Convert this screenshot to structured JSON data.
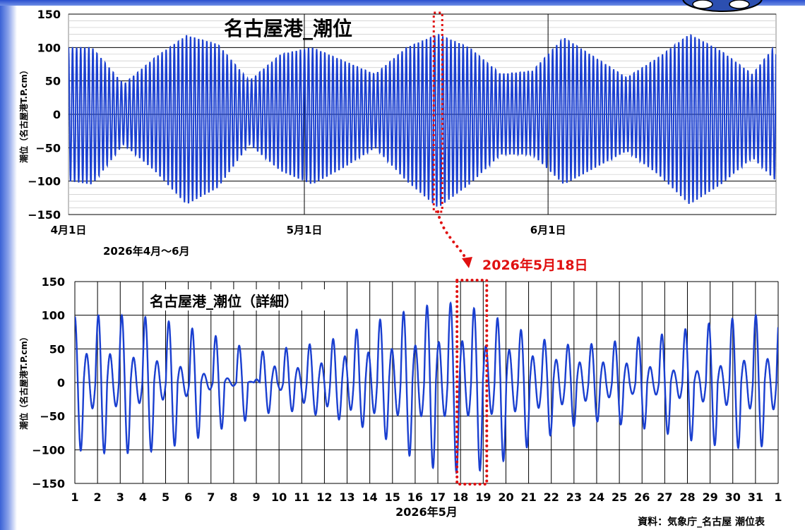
{
  "chart_data": [
    {
      "type": "line",
      "title": "名古屋港_潮位",
      "ylabel": "潮位（名古屋港T.P.cm）",
      "ylim": [
        -150,
        150
      ],
      "yticks": [
        "150",
        "100",
        "50",
        "0",
        "−50",
        "−100",
        "−150"
      ],
      "xlim": [
        "2026-04-01",
        "2026-06-30"
      ],
      "xticks": [
        {
          "date": "2026-04-01",
          "label": "4月1日"
        },
        {
          "date": "2026-05-01",
          "label": "5月1日"
        },
        {
          "date": "2026-06-01",
          "label": "6月1日"
        }
      ],
      "period_label": "2026年4月～6月",
      "highlight": {
        "date": "2026-05-18"
      },
      "series": [
        {
          "color": "#1a3fd0",
          "daily_range": {
            "dates": [
              "2026-04-01",
              "2026-04-04",
              "2026-04-08",
              "2026-04-12",
              "2026-04-16",
              "2026-04-20",
              "2026-04-24",
              "2026-04-28",
              "2026-05-02",
              "2026-05-06",
              "2026-05-10",
              "2026-05-14",
              "2026-05-18",
              "2026-05-22",
              "2026-05-26",
              "2026-05-30",
              "2026-06-03",
              "2026-06-07",
              "2026-06-11",
              "2026-06-15",
              "2026-06-19",
              "2026-06-23",
              "2026-06-27",
              "2026-06-30"
            ],
            "high": [
              100,
              100,
              45,
              85,
              118,
              105,
              50,
              90,
              100,
              80,
              60,
              100,
              120,
              100,
              60,
              65,
              115,
              85,
              55,
              85,
              120,
              95,
              60,
              105
            ],
            "low": [
              -100,
              -105,
              -45,
              -85,
              -135,
              -110,
              -45,
              -85,
              -105,
              -80,
              -50,
              -100,
              -140,
              -105,
              -60,
              -60,
              -105,
              -80,
              -55,
              -90,
              -135,
              -105,
              -65,
              -100
            ]
          }
        }
      ]
    },
    {
      "type": "line",
      "title": "名古屋港_潮位（詳細）",
      "ylabel": "潮位（名古屋港T.P.cm）",
      "ylim": [
        -150,
        150
      ],
      "yticks": [
        "150",
        "100",
        "50",
        "0",
        "−50",
        "−100",
        "−150"
      ],
      "xlim": [
        1,
        32
      ],
      "xticks": [
        "1",
        "2",
        "3",
        "4",
        "5",
        "6",
        "7",
        "8",
        "9",
        "10",
        "11",
        "12",
        "13",
        "14",
        "15",
        "16",
        "17",
        "18",
        "19",
        "20",
        "21",
        "22",
        "23",
        "24",
        "25",
        "26",
        "27",
        "28",
        "29",
        "30",
        "31",
        "1"
      ],
      "xlabel": "2026年5月",
      "highlight": {
        "day_start": 18,
        "day_end": 19,
        "label": "2026年5月18日"
      },
      "series": [
        {
          "color": "#1a3fd0",
          "day": [
            1,
            2,
            3,
            4,
            5,
            6,
            7,
            8,
            9,
            10,
            11,
            12,
            13,
            14,
            15,
            16,
            17,
            18,
            19,
            20,
            21,
            22,
            23,
            24,
            25,
            26,
            27,
            28,
            29,
            30,
            31,
            32
          ],
          "high1": [
            98,
            100,
            100,
            98,
            92,
            82,
            72,
            58,
            45,
            50,
            55,
            60,
            72,
            88,
            100,
            110,
            118,
            118,
            105,
            90,
            72,
            60,
            55,
            58,
            62,
            68,
            72,
            80,
            88,
            95,
            100,
            100
          ],
          "low1": [
            -100,
            -105,
            -105,
            -105,
            -98,
            -88,
            -75,
            -62,
            -52,
            -40,
            -45,
            -50,
            -58,
            -70,
            -90,
            -115,
            -130,
            -135,
            -130,
            -115,
            -95,
            -78,
            -65,
            -58,
            -62,
            -68,
            -75,
            -85,
            -92,
            -98,
            -95,
            -95
          ],
          "high2": [
            40,
            45,
            40,
            35,
            30,
            20,
            10,
            5,
            0,
            30,
            20,
            30,
            40,
            45,
            50,
            55,
            60,
            62,
            55,
            50,
            40,
            35,
            30,
            30,
            30,
            25,
            20,
            15,
            20,
            30,
            35,
            35
          ],
          "low2": [
            -40,
            -38,
            -35,
            -30,
            -25,
            -20,
            -10,
            -5,
            5,
            -10,
            -30,
            -35,
            -40,
            -45,
            -48,
            -50,
            -50,
            -50,
            -48,
            -45,
            -40,
            -35,
            -30,
            -25,
            -20,
            -15,
            -20,
            -25,
            -30,
            -35,
            -40,
            -40
          ]
        }
      ]
    }
  ],
  "source": "資料：気象庁_名古屋 潮位表"
}
